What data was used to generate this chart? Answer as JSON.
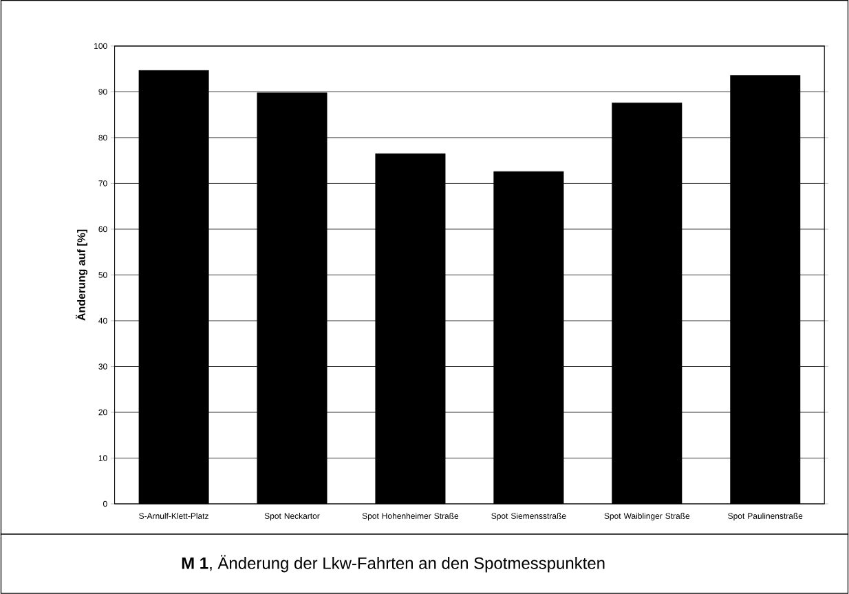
{
  "chart_data": {
    "type": "bar",
    "title": "**M 1**, Änderung der Lkw-Fahrten an den Spotmesspunkten",
    "ylabel": "Änderung auf [%]",
    "categories": [
      "S-Arnulf-Klett-Platz",
      "Spot Neckartor",
      "Spot Hohenheimer Straße",
      "Spot Siemensstraße",
      "Spot Waiblinger Straße",
      "Spot Paulinenstraße"
    ],
    "values": [
      94.7,
      89.8,
      76.5,
      72.6,
      87.6,
      93.6
    ],
    "color": "#000000",
    "ylim": [
      0,
      100
    ],
    "yticks": [
      0,
      10,
      20,
      30,
      40,
      50,
      60,
      70,
      80,
      90,
      100
    ],
    "grid": "y"
  }
}
